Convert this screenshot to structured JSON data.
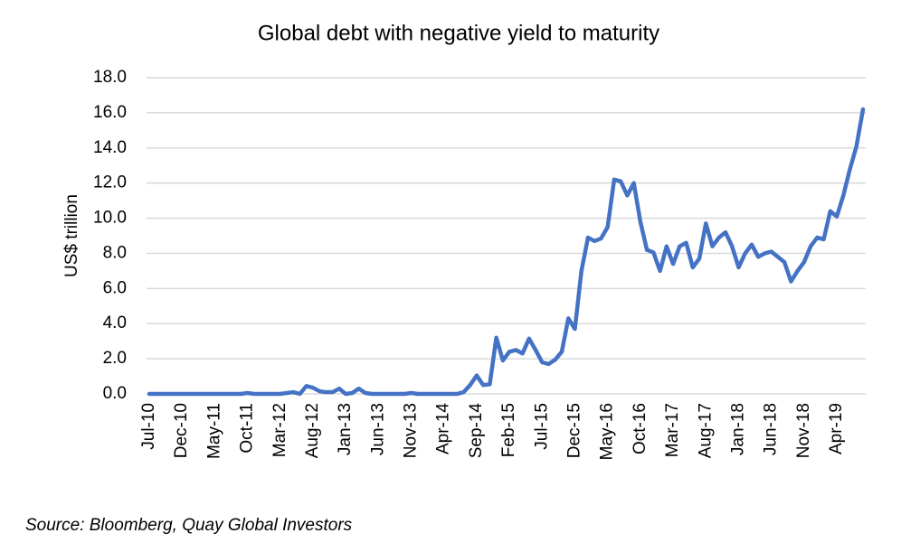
{
  "chart_data": {
    "type": "line",
    "title": "Global debt with negative yield to maturity",
    "y_label": "US$ trillion",
    "source": "Source: Bloomberg, Quay Global Investors",
    "categories": [
      "Jul-10",
      null,
      null,
      null,
      null,
      "Dec-10",
      null,
      null,
      null,
      null,
      "May-11",
      null,
      null,
      null,
      null,
      "Oct-11",
      null,
      null,
      null,
      null,
      "Mar-12",
      null,
      null,
      null,
      null,
      "Aug-12",
      null,
      null,
      null,
      null,
      "Jan-13",
      null,
      null,
      null,
      null,
      "Jun-13",
      null,
      null,
      null,
      null,
      "Nov-13",
      null,
      null,
      null,
      null,
      "Apr-14",
      null,
      null,
      null,
      null,
      "Sep-14",
      null,
      null,
      null,
      null,
      "Feb-15",
      null,
      null,
      null,
      null,
      "Jul-15",
      null,
      null,
      null,
      null,
      "Dec-15",
      null,
      null,
      null,
      null,
      "May-16",
      null,
      null,
      null,
      null,
      "Oct-16",
      null,
      null,
      null,
      null,
      "Mar-17",
      null,
      null,
      null,
      null,
      "Aug-17",
      null,
      null,
      null,
      null,
      "Jan-18",
      null,
      null,
      null,
      null,
      "Jun-18",
      null,
      null,
      null,
      null,
      "Nov-18",
      null,
      null,
      null,
      null,
      "Apr-19",
      null,
      null,
      null,
      null
    ],
    "values": [
      0,
      0,
      0,
      0,
      0,
      0,
      0,
      0,
      0,
      0,
      0,
      0,
      0,
      0,
      0,
      0.05,
      0,
      0,
      0,
      0,
      0,
      0.05,
      0.1,
      0,
      0.45,
      0.35,
      0.15,
      0.1,
      0.1,
      0.3,
      0,
      0.05,
      0.3,
      0.05,
      0,
      0,
      0,
      0,
      0,
      0,
      0.05,
      0,
      0,
      0,
      0,
      0,
      0,
      0,
      0.1,
      0.5,
      1.05,
      0.5,
      0.55,
      3.2,
      1.9,
      2.4,
      2.5,
      2.3,
      3.15,
      2.5,
      1.8,
      1.7,
      1.95,
      2.4,
      4.3,
      3.7,
      7.0,
      8.9,
      8.7,
      8.85,
      9.5,
      12.2,
      12.1,
      11.3,
      12.0,
      9.8,
      8.2,
      8.05,
      7.0,
      8.4,
      7.4,
      8.4,
      8.6,
      7.2,
      7.7,
      9.7,
      8.4,
      8.9,
      9.2,
      8.4,
      7.2,
      8.0,
      8.5,
      7.8,
      8.0,
      8.1,
      7.8,
      7.5,
      6.4,
      7.0,
      7.5,
      8.4,
      8.9,
      8.8,
      10.4,
      10.1,
      11.3,
      12.8,
      14.1,
      16.2
    ],
    "color": "#4472c4",
    "ylim": [
      0,
      18
    ],
    "yticks": [
      {
        "value": 0,
        "label": "0.0"
      },
      {
        "value": 2,
        "label": "2.0"
      },
      {
        "value": 4,
        "label": "4.0"
      },
      {
        "value": 6,
        "label": "6.0"
      },
      {
        "value": 8,
        "label": "8.0"
      },
      {
        "value": 10,
        "label": "10.0"
      },
      {
        "value": 12,
        "label": "12.0"
      },
      {
        "value": 14,
        "label": "14.0"
      },
      {
        "value": 16,
        "label": "16.0"
      },
      {
        "value": 18,
        "label": "18.0"
      }
    ],
    "grid": true
  }
}
